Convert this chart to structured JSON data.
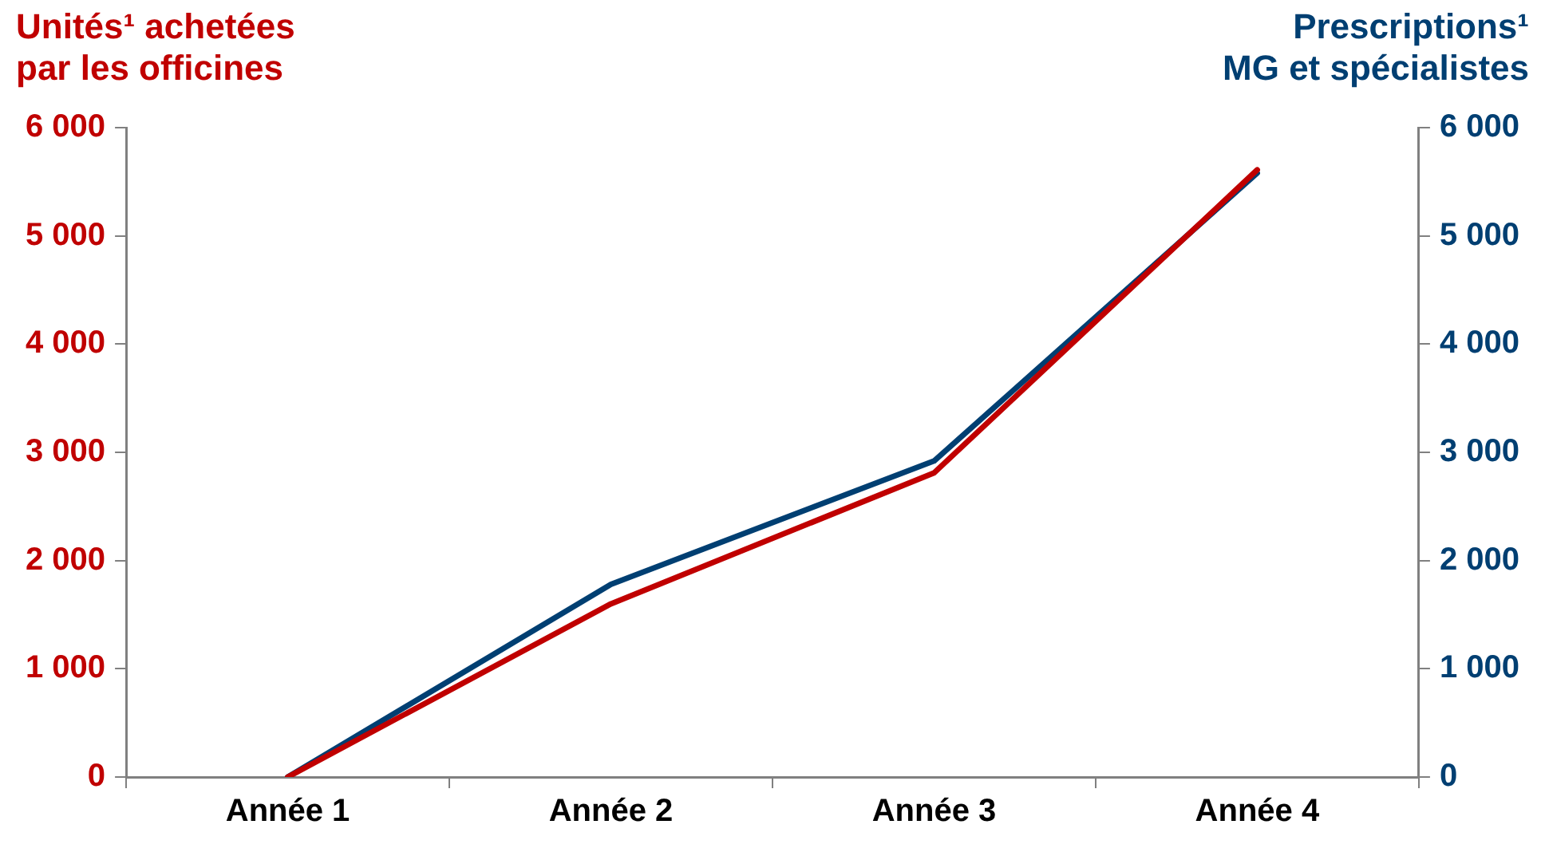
{
  "chart_data": {
    "type": "line",
    "ylabel": "Unités¹ achetées\npar les officines",
    "y2label": "Prescriptions¹\nMG et spécialistes",
    "categories": [
      "Année 1",
      "Année 2",
      "Année 3",
      "Année 4"
    ],
    "series": [
      {
        "color": "#c00000",
        "values": [
          0,
          1600,
          2810,
          5610
        ]
      },
      {
        "color": "#003f72",
        "values": [
          0,
          1780,
          2920,
          5580
        ],
        "axis": "y2"
      }
    ],
    "ylim": [
      0,
      6000
    ],
    "yticks": [
      0,
      {
        "value": 1000,
        "label": "1 000"
      },
      {
        "value": 2000,
        "label": "2 000"
      },
      {
        "value": 3000,
        "label": "3 000"
      },
      {
        "value": 4000,
        "label": "4 000"
      },
      {
        "value": 5000,
        "label": "5 000"
      },
      {
        "value": 6000,
        "label": "6 000"
      }
    ],
    "y2lim": [
      0,
      6000
    ],
    "y2ticks": [
      0,
      {
        "value": 1000,
        "label": "1 000"
      },
      {
        "value": 2000,
        "label": "2 000"
      },
      {
        "value": 3000,
        "label": "3 000"
      },
      {
        "value": 4000,
        "label": "4 000"
      },
      {
        "value": 5000,
        "label": "5 000"
      },
      {
        "value": 6000,
        "label": "6 000"
      }
    ],
    "grid": false,
    "legend": false,
    "marker": "none",
    "line_style": "solid"
  }
}
